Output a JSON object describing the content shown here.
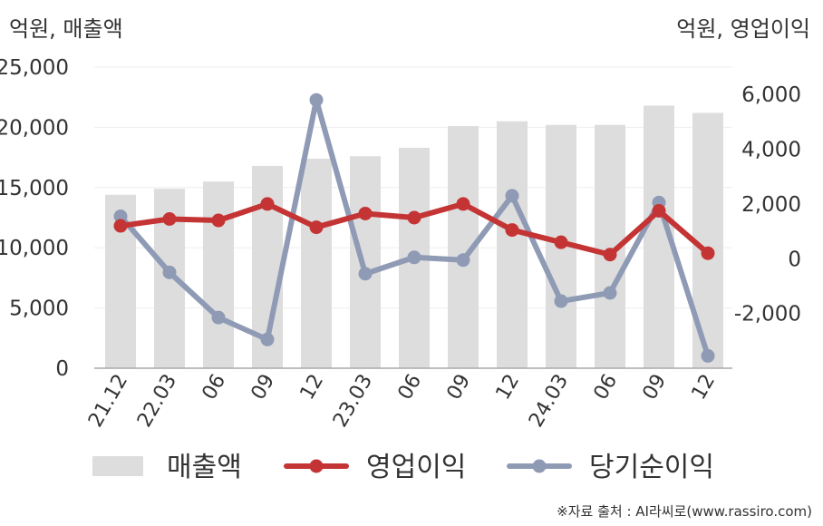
{
  "units": {
    "left": "억원, 매출액",
    "right": "억원, 영업이익"
  },
  "source": "※자료 출처 : AI라씨로(www.rassiro.com)",
  "colors": {
    "revenue": "#dddddd",
    "operating_profit": "#c53434",
    "net_income": "#8f9bb5",
    "axis": "#aaaaaa",
    "grid": "#eeeeee"
  },
  "chart_data": {
    "type": "bar",
    "categories": [
      "21.12",
      "22.03",
      "06",
      "09",
      "12",
      "23.03",
      "06",
      "09",
      "12",
      "24.03",
      "06",
      "09",
      "12"
    ],
    "y_left": {
      "range": [
        0,
        25000
      ],
      "ticks": [
        "0",
        "5,000",
        "10,000",
        "15,000",
        "20,000",
        "25,000"
      ],
      "tick_values": [
        0,
        5000,
        10000,
        15000,
        20000,
        25000
      ]
    },
    "y_right": {
      "range": [
        -4000,
        7000
      ],
      "ticks": [
        "-2,000",
        "0",
        "2,000",
        "4,000",
        "6,000"
      ],
      "tick_values": [
        -2000,
        0,
        2000,
        4000,
        6000
      ]
    },
    "series": [
      {
        "name": "매출액",
        "type": "bar",
        "axis": "left",
        "values": [
          14400,
          14900,
          15500,
          16800,
          17400,
          17600,
          18300,
          20100,
          20500,
          20200,
          20200,
          21800,
          21200
        ]
      },
      {
        "name": "영업이익",
        "type": "line",
        "axis": "right",
        "values": [
          1200,
          1450,
          1400,
          2000,
          1150,
          1650,
          1500,
          2000,
          1050,
          600,
          150,
          1750,
          200
        ]
      },
      {
        "name": "당기순이익",
        "type": "line",
        "axis": "right",
        "values": [
          1550,
          -500,
          -2150,
          -2950,
          5800,
          -550,
          50,
          -50,
          2300,
          -1550,
          -1250,
          2050,
          -3550
        ]
      }
    ],
    "legend_position": "bottom",
    "grid": true
  }
}
